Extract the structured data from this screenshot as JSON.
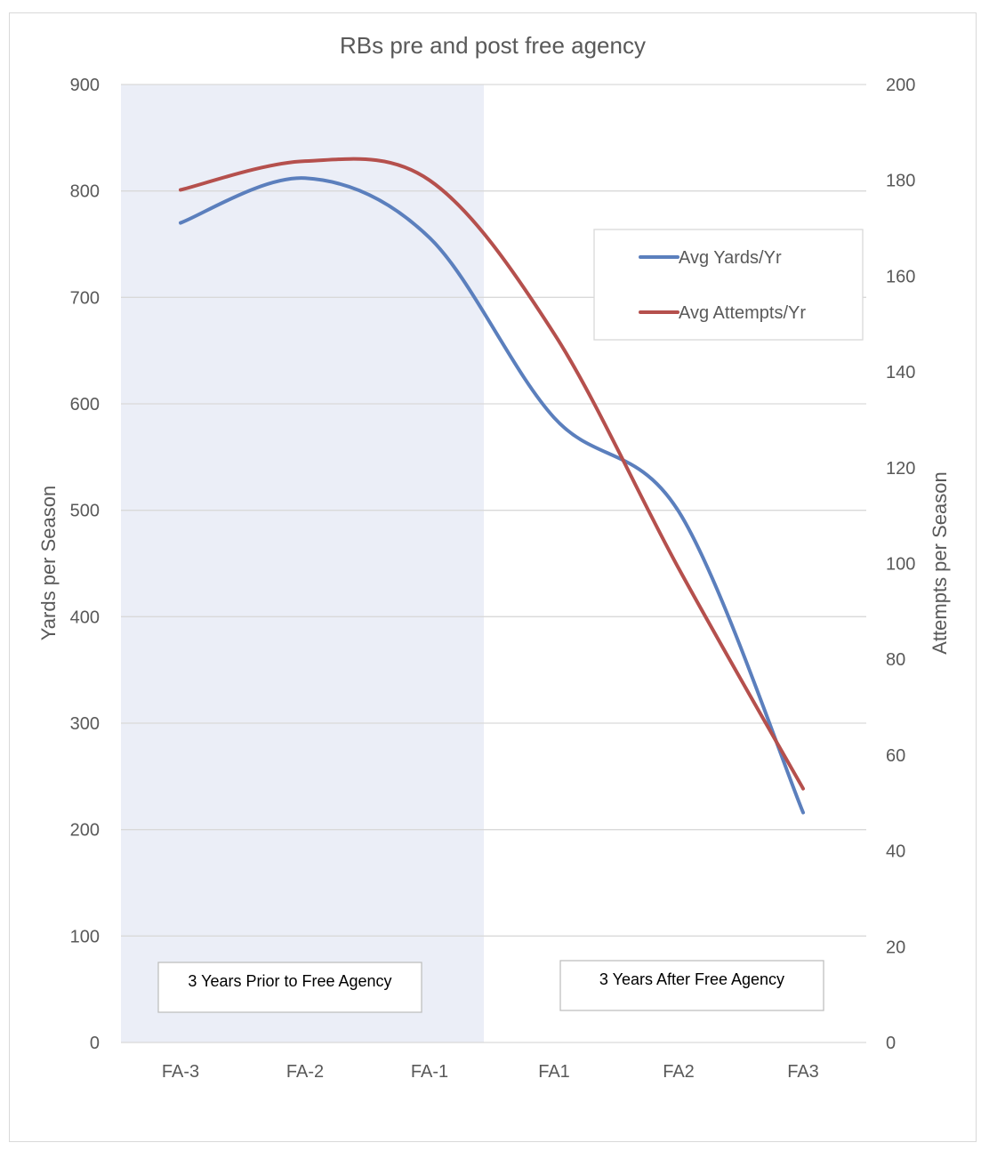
{
  "chart_data": {
    "type": "line",
    "title": "RBs pre and post free agency",
    "categories": [
      "FA-3",
      "FA-2",
      "FA-1",
      "FA1",
      "FA2",
      "FA3"
    ],
    "ylabel": "Yards per Season",
    "y2label": "Attempts per Season",
    "ylim": [
      0,
      900
    ],
    "y2lim": [
      0,
      200
    ],
    "yticks": [
      0,
      100,
      200,
      300,
      400,
      500,
      600,
      700,
      800,
      900
    ],
    "y2ticks": [
      0,
      20,
      40,
      60,
      80,
      100,
      120,
      140,
      160,
      180,
      200
    ],
    "grid": true,
    "legend_position": "right",
    "series": [
      {
        "name": "Avg Yards/Yr",
        "axis": "left",
        "color": "#5b7fbd",
        "values": [
          770,
          812,
          756,
          587,
          499,
          216
        ]
      },
      {
        "name": "Avg Attempts/Yr",
        "axis": "right",
        "color": "#b5504d",
        "values": [
          178,
          184,
          180,
          148,
          99,
          53
        ]
      }
    ],
    "shaded_region": {
      "from": "FA-3",
      "to": "FA-1",
      "color": "#ebeef7"
    },
    "annotations": [
      "3 Years Prior to Free Agency",
      "3 Years After Free Agency"
    ]
  }
}
